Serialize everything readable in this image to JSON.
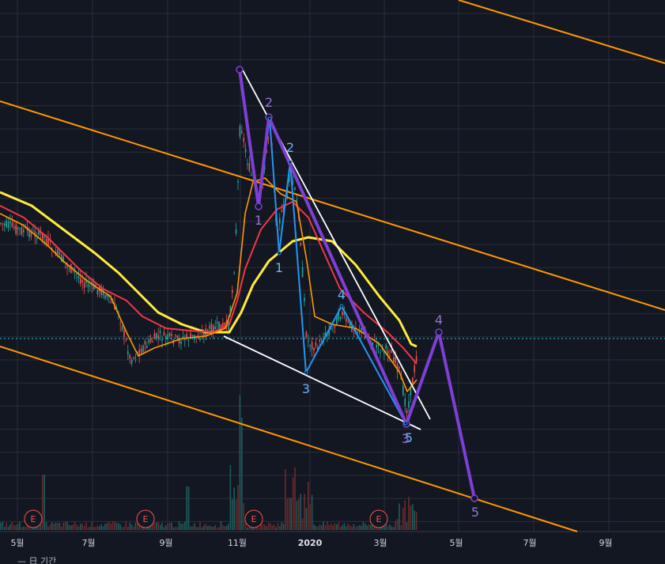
{
  "chart_data": {
    "type": "line",
    "x_axis": {
      "tick_labels": [
        "5월",
        "7월",
        "9월",
        "11월",
        "2020",
        "3월",
        "5월",
        "7월",
        "9월"
      ]
    },
    "earnings_markers": [
      "E",
      "E",
      "E",
      "E"
    ],
    "wave_labels_major": [
      "2",
      "1",
      "4",
      "5"
    ],
    "wave_labels_minor": [
      "2",
      "1",
      "3",
      "4",
      "5",
      "3"
    ],
    "footer_text": "— 日 기간",
    "colors": {
      "background": "#131722",
      "grid": "#2a2e39",
      "ma_fast": "#ff9800",
      "ma_mid": "#f23645",
      "ma_slow": "#ffeb3b",
      "channel": "#ff9800",
      "wedge": "#ffffff",
      "wave_major": "#7e3fd6",
      "wave_minor": "#2196f3",
      "candle_up": "#26a69a",
      "candle_down": "#ef5350",
      "last_price_line": "#26c6da"
    }
  }
}
